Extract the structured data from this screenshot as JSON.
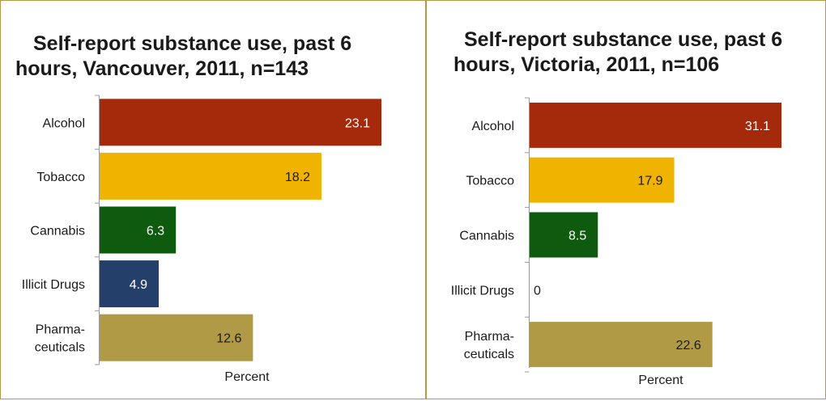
{
  "chart_data": [
    {
      "type": "bar",
      "orientation": "horizontal",
      "title_lines": [
        "Self-report substance use, past 6",
        "hours, Vancouver, 2011, n=143"
      ],
      "categories": [
        [
          "Alcohol"
        ],
        [
          "Tobacco"
        ],
        [
          "Cannabis"
        ],
        [
          "Illicit Drugs"
        ],
        [
          "Pharma-",
          "ceuticals"
        ]
      ],
      "values": [
        23.1,
        18.2,
        6.3,
        4.9,
        12.6
      ],
      "value_labels": [
        "23.1",
        "18.2",
        "6.3",
        "4.9",
        "12.6"
      ],
      "colors": [
        "#a52a0c",
        "#f0b300",
        "#0e5a0e",
        "#24406a",
        "#b09a45"
      ],
      "label_colors": [
        "#ffffff",
        "#1a1a1a",
        "#ffffff",
        "#ffffff",
        "#1a1a1a"
      ],
      "xlabel": "Percent",
      "xlim": [
        0,
        23.1
      ],
      "grid": false
    },
    {
      "type": "bar",
      "orientation": "horizontal",
      "title_lines": [
        "Self-report substance use, past 6",
        "hours, Victoria, 2011, n=106"
      ],
      "categories": [
        [
          "Alcohol"
        ],
        [
          "Tobacco"
        ],
        [
          "Cannabis"
        ],
        [
          "Illicit Drugs"
        ],
        [
          "Pharma-",
          "ceuticals"
        ]
      ],
      "values": [
        31.1,
        17.9,
        8.5,
        0,
        22.6
      ],
      "value_labels": [
        "31.1",
        "17.9",
        "8.5",
        "0",
        "22.6"
      ],
      "colors": [
        "#a52a0c",
        "#f0b300",
        "#0e5a0e",
        "#24406a",
        "#b09a45"
      ],
      "label_colors": [
        "#ffffff",
        "#1a1a1a",
        "#ffffff",
        "#1a1a1a",
        "#1a1a1a"
      ],
      "xlabel": "Percent",
      "xlim": [
        0,
        31.1
      ],
      "grid": false
    }
  ]
}
